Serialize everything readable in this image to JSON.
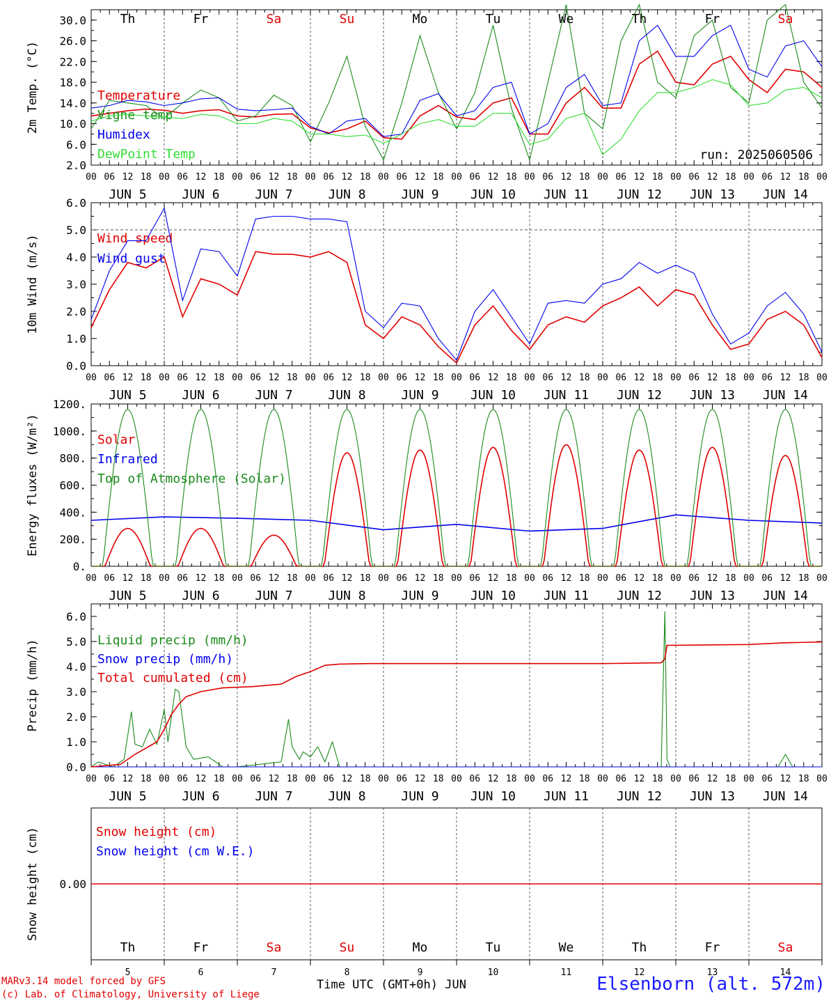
{
  "colors": {
    "red": "#e00000",
    "blue": "#0000ee",
    "green": "#1a8a1a",
    "lightgreen": "#33dd33",
    "black": "#000000",
    "grid": "#666666"
  },
  "days": [
    "Th",
    "Fr",
    "Sa",
    "Su",
    "Mo",
    "Tu",
    "We",
    "Th",
    "Fr",
    "Sa"
  ],
  "day_colors": [
    "black",
    "black",
    "red",
    "red",
    "black",
    "black",
    "black",
    "black",
    "black",
    "red"
  ],
  "date_labels": [
    "JUN  5",
    "JUN  6",
    "JUN  7",
    "JUN  8",
    "JUN  9",
    "JUN 10",
    "JUN 11",
    "JUN 12",
    "JUN 13",
    "JUN 14"
  ],
  "hour_ticks": [
    "00",
    "06",
    "12",
    "18"
  ],
  "last_hour_tick": "00",
  "bottom_day_numbers": [
    "5",
    "6",
    "7",
    "8",
    "9",
    "10",
    "11",
    "12",
    "13",
    "14"
  ],
  "footer": {
    "model_line": "MARv3.14 model forced by GFS",
    "lab_line": "(c) Lab. of Climatology, University of Liege",
    "xlabel": "Time UTC (GMT+0h) JUN",
    "station": "Elsenborn (alt. 572m)"
  },
  "chart_data": [
    {
      "type": "line",
      "ylabel": "2m Temp. (°C)",
      "ylim": [
        2,
        32
      ],
      "yticks": [
        "2.0",
        "6.0",
        "10.0",
        "14.0",
        "18.0",
        "22.0",
        "26.0",
        "30.0"
      ],
      "annotation": "run: 2025060506",
      "x_unit": "days since JUN 5 00 UTC",
      "series": [
        {
          "name": "Temperature",
          "color": "red",
          "x": [
            0,
            0.25,
            0.5,
            0.75,
            1,
            1.25,
            1.5,
            1.75,
            2,
            2.25,
            2.5,
            2.75,
            3,
            3.25,
            3.5,
            3.75,
            4,
            4.25,
            4.5,
            4.75,
            5,
            5.25,
            5.5,
            5.75,
            6,
            6.25,
            6.5,
            6.75,
            7,
            7.25,
            7.5,
            7.75,
            8,
            8.25,
            8.5,
            8.75,
            9,
            9.25,
            9.5,
            9.75,
            10
          ],
          "values": [
            11.5,
            12,
            12.5,
            12.8,
            12.6,
            12,
            12.5,
            12.7,
            11.5,
            11.3,
            11.8,
            11.9,
            9.2,
            8.2,
            9,
            10.5,
            7.3,
            7,
            11.5,
            13.5,
            11.3,
            10.8,
            14,
            15,
            8,
            8,
            14,
            17,
            13,
            13,
            21.5,
            24,
            18,
            17.5,
            21.5,
            23,
            18.5,
            16,
            20.5,
            20,
            17
          ]
        },
        {
          "name": "Vigne temp",
          "color": "green",
          "x": [
            0,
            0.25,
            0.5,
            0.75,
            1,
            1.25,
            1.5,
            1.75,
            2,
            2.25,
            2.5,
            2.75,
            3,
            3.25,
            3.5,
            3.75,
            4,
            4.25,
            4.5,
            4.75,
            5,
            5.25,
            5.5,
            5.75,
            6,
            6.25,
            6.5,
            6.75,
            7,
            7.25,
            7.5,
            7.75,
            8,
            8.25,
            8.5,
            8.75,
            9,
            9.25,
            9.5,
            9.75,
            10
          ],
          "values": [
            9,
            14.5,
            14,
            13.5,
            11,
            14,
            16.5,
            15,
            10.5,
            11.5,
            15.5,
            13.5,
            6.5,
            14,
            23,
            9.5,
            3,
            14,
            27,
            16,
            9,
            16,
            29,
            13,
            3,
            18,
            33,
            12,
            9,
            26,
            33,
            18,
            15,
            27,
            30,
            17,
            14,
            30,
            33,
            18,
            13
          ]
        },
        {
          "name": "Humidex",
          "color": "blue",
          "x": [
            0,
            0.25,
            0.5,
            0.75,
            1,
            1.25,
            1.5,
            1.75,
            2,
            2.25,
            2.5,
            2.75,
            3,
            3.25,
            3.5,
            3.75,
            4,
            4.25,
            4.5,
            4.75,
            5,
            5.25,
            5.5,
            5.75,
            6,
            6.25,
            6.5,
            6.75,
            7,
            7.25,
            7.5,
            7.75,
            8,
            8.25,
            8.5,
            8.75,
            9,
            9.25,
            9.5,
            9.75,
            10
          ],
          "values": [
            13,
            13.5,
            14.5,
            14.2,
            13.5,
            14,
            14.8,
            15,
            12.8,
            12.5,
            12.7,
            13,
            9.5,
            8,
            10.5,
            11,
            7.5,
            8,
            14.5,
            15.8,
            11.5,
            12.5,
            17,
            18,
            8,
            10,
            17,
            19.5,
            13.5,
            14,
            26,
            29,
            23,
            23,
            27,
            29,
            20.5,
            19,
            25,
            26,
            21
          ]
        },
        {
          "name": "DewPoint Temp",
          "color": "lightgreen",
          "x": [
            0,
            0.25,
            0.5,
            0.75,
            1,
            1.25,
            1.5,
            1.75,
            2,
            2.25,
            2.5,
            2.75,
            3,
            3.25,
            3.5,
            3.75,
            4,
            4.25,
            4.5,
            4.75,
            5,
            5.25,
            5.5,
            5.75,
            6,
            6.25,
            6.5,
            6.75,
            7,
            7.25,
            7.5,
            7.75,
            8,
            8.25,
            8.5,
            8.75,
            9,
            9.25,
            9.5,
            9.75,
            10
          ],
          "values": [
            10.5,
            11.5,
            11.8,
            11.5,
            11.2,
            11,
            11.8,
            11.5,
            10,
            10,
            11,
            10.5,
            8,
            8,
            7.5,
            7.8,
            6.2,
            8,
            10,
            10.8,
            9.5,
            9.5,
            12,
            12,
            6,
            7,
            11,
            12,
            4,
            7,
            12.5,
            16,
            16,
            17,
            18.5,
            17.5,
            13.5,
            14,
            16.5,
            17,
            15
          ]
        }
      ]
    },
    {
      "type": "line",
      "ylabel": "10m Wind (m/s)",
      "ylim": [
        0,
        6
      ],
      "yticks": [
        "0.0",
        "1.0",
        "2.0",
        "3.0",
        "4.0",
        "5.0",
        "6.0"
      ],
      "ref_line": 5,
      "x_unit": "days since JUN 5 00 UTC",
      "series": [
        {
          "name": "Wind speed",
          "color": "red",
          "x": [
            0,
            0.25,
            0.5,
            0.75,
            1,
            1.25,
            1.5,
            1.75,
            2,
            2.25,
            2.5,
            2.75,
            3,
            3.25,
            3.5,
            3.75,
            4,
            4.25,
            4.5,
            4.75,
            5,
            5.25,
            5.5,
            5.75,
            6,
            6.25,
            6.5,
            6.75,
            7,
            7.25,
            7.5,
            7.75,
            8,
            8.25,
            8.5,
            8.75,
            9,
            9.25,
            9.5,
            9.75,
            10
          ],
          "values": [
            1.4,
            2.8,
            3.8,
            3.6,
            4,
            1.8,
            3.2,
            3.0,
            2.6,
            4.2,
            4.1,
            4.1,
            4.0,
            4.2,
            3.8,
            1.5,
            1.0,
            1.8,
            1.5,
            0.7,
            0.1,
            1.5,
            2.2,
            1.3,
            0.6,
            1.5,
            1.8,
            1.6,
            2.2,
            2.5,
            2.9,
            2.2,
            2.8,
            2.6,
            1.5,
            0.6,
            0.8,
            1.7,
            2.0,
            1.5,
            0.3
          ]
        },
        {
          "name": "Wind gust",
          "color": "blue",
          "x": [
            0,
            0.25,
            0.5,
            0.75,
            1,
            1.25,
            1.5,
            1.75,
            2,
            2.25,
            2.5,
            2.75,
            3,
            3.25,
            3.5,
            3.75,
            4,
            4.25,
            4.5,
            4.75,
            5,
            5.25,
            5.5,
            5.75,
            6,
            6.25,
            6.5,
            6.75,
            7,
            7.25,
            7.5,
            7.75,
            8,
            8.25,
            8.5,
            8.75,
            9,
            9.25,
            9.5,
            9.75,
            10
          ],
          "values": [
            1.7,
            3.5,
            4.6,
            4.6,
            5.8,
            2.4,
            4.3,
            4.2,
            3.3,
            5.4,
            5.5,
            5.5,
            5.4,
            5.4,
            5.3,
            2.0,
            1.4,
            2.3,
            2.2,
            1.0,
            0.2,
            2.0,
            2.8,
            1.8,
            0.8,
            2.3,
            2.4,
            2.3,
            3.0,
            3.2,
            3.8,
            3.4,
            3.7,
            3.4,
            1.9,
            0.8,
            1.2,
            2.2,
            2.7,
            1.9,
            0.5
          ]
        }
      ]
    },
    {
      "type": "line",
      "ylabel": "Energy fluxes (W/m²)",
      "ylim": [
        0,
        1200
      ],
      "yticks": [
        "0.",
        "200.",
        "400.",
        "600.",
        "800.",
        "1000.",
        "1200."
      ],
      "x_unit": "days since JUN 5 00 UTC",
      "series": [
        {
          "name": "Solar",
          "color": "red",
          "peak": [
            280,
            280,
            230,
            840,
            860,
            880,
            900,
            860,
            880,
            820
          ]
        },
        {
          "name": "Infrared",
          "color": "blue",
          "x": [
            0,
            1,
            2,
            3,
            4,
            5,
            6,
            7,
            8,
            9,
            10
          ],
          "values": [
            340,
            365,
            355,
            340,
            270,
            310,
            260,
            280,
            380,
            340,
            320
          ]
        },
        {
          "name": "Top of Atmosphere (Solar)",
          "color": "green",
          "peak": [
            1160,
            1160,
            1160,
            1160,
            1160,
            1160,
            1160,
            1160,
            1160,
            1160
          ]
        }
      ]
    },
    {
      "type": "line",
      "ylabel": "Precip (mm/h)",
      "ylim": [
        0,
        6.5
      ],
      "yticks": [
        "0.0",
        "1.0",
        "2.0",
        "3.0",
        "4.0",
        "5.0",
        "6.0"
      ],
      "x_unit": "days since JUN 5 00 UTC",
      "series": [
        {
          "name": "Liquid precip (mm/h)",
          "color": "green",
          "x": [
            0,
            0.1,
            0.3,
            0.45,
            0.55,
            0.6,
            0.7,
            0.8,
            0.9,
            1.0,
            1.05,
            1.15,
            1.2,
            1.3,
            1.4,
            1.6,
            1.8,
            2.0,
            2.6,
            2.7,
            2.75,
            2.85,
            2.9,
            3.0,
            3.1,
            3.2,
            3.3,
            3.4,
            3.5,
            4,
            5,
            6,
            7,
            7.8,
            7.85,
            7.88,
            7.92,
            8,
            9,
            9.4,
            9.5,
            9.6,
            10
          ],
          "values": [
            0,
            0.2,
            0,
            0.3,
            2.2,
            0.9,
            0.8,
            1.5,
            0.9,
            2.3,
            1.0,
            3.1,
            3.0,
            0.8,
            0.3,
            0.4,
            0,
            0,
            0.2,
            1.9,
            0.8,
            0.3,
            0.6,
            0.4,
            0.8,
            0.2,
            1.0,
            0,
            0,
            0,
            0,
            0,
            0,
            0,
            6.2,
            0.3,
            0,
            0,
            0,
            0,
            0.5,
            0,
            0
          ]
        },
        {
          "name": "Snow precip (mm/h)",
          "color": "blue",
          "x": [
            0,
            10
          ],
          "values": [
            0,
            0
          ]
        },
        {
          "name": "Total cumulated (cm)",
          "color": "red",
          "x": [
            0,
            0.4,
            0.6,
            0.9,
            1.0,
            1.1,
            1.2,
            1.3,
            1.5,
            1.8,
            2.2,
            2.6,
            2.8,
            3.0,
            3.2,
            3.4,
            3.8,
            5,
            7,
            7.8,
            7.85,
            7.88,
            8,
            9,
            9.5,
            10
          ],
          "values": [
            0,
            0.1,
            0.5,
            1.0,
            1.5,
            2.1,
            2.5,
            2.8,
            3.0,
            3.15,
            3.2,
            3.3,
            3.6,
            3.8,
            4.05,
            4.1,
            4.12,
            4.12,
            4.12,
            4.15,
            4.3,
            4.85,
            4.85,
            4.88,
            4.95,
            4.98
          ]
        }
      ]
    },
    {
      "type": "line",
      "ylabel": "Snow height (cm)",
      "yticks": [
        "0.00"
      ],
      "x_unit": "days since JUN 5 00 UTC",
      "series": [
        {
          "name": "Snow height (cm)",
          "color": "red",
          "x": [
            0,
            10
          ],
          "values": [
            0,
            0
          ]
        },
        {
          "name": "Snow height (cm W.E.)",
          "color": "blue",
          "x": [
            0,
            10
          ],
          "values": [
            0,
            0
          ]
        }
      ]
    }
  ]
}
